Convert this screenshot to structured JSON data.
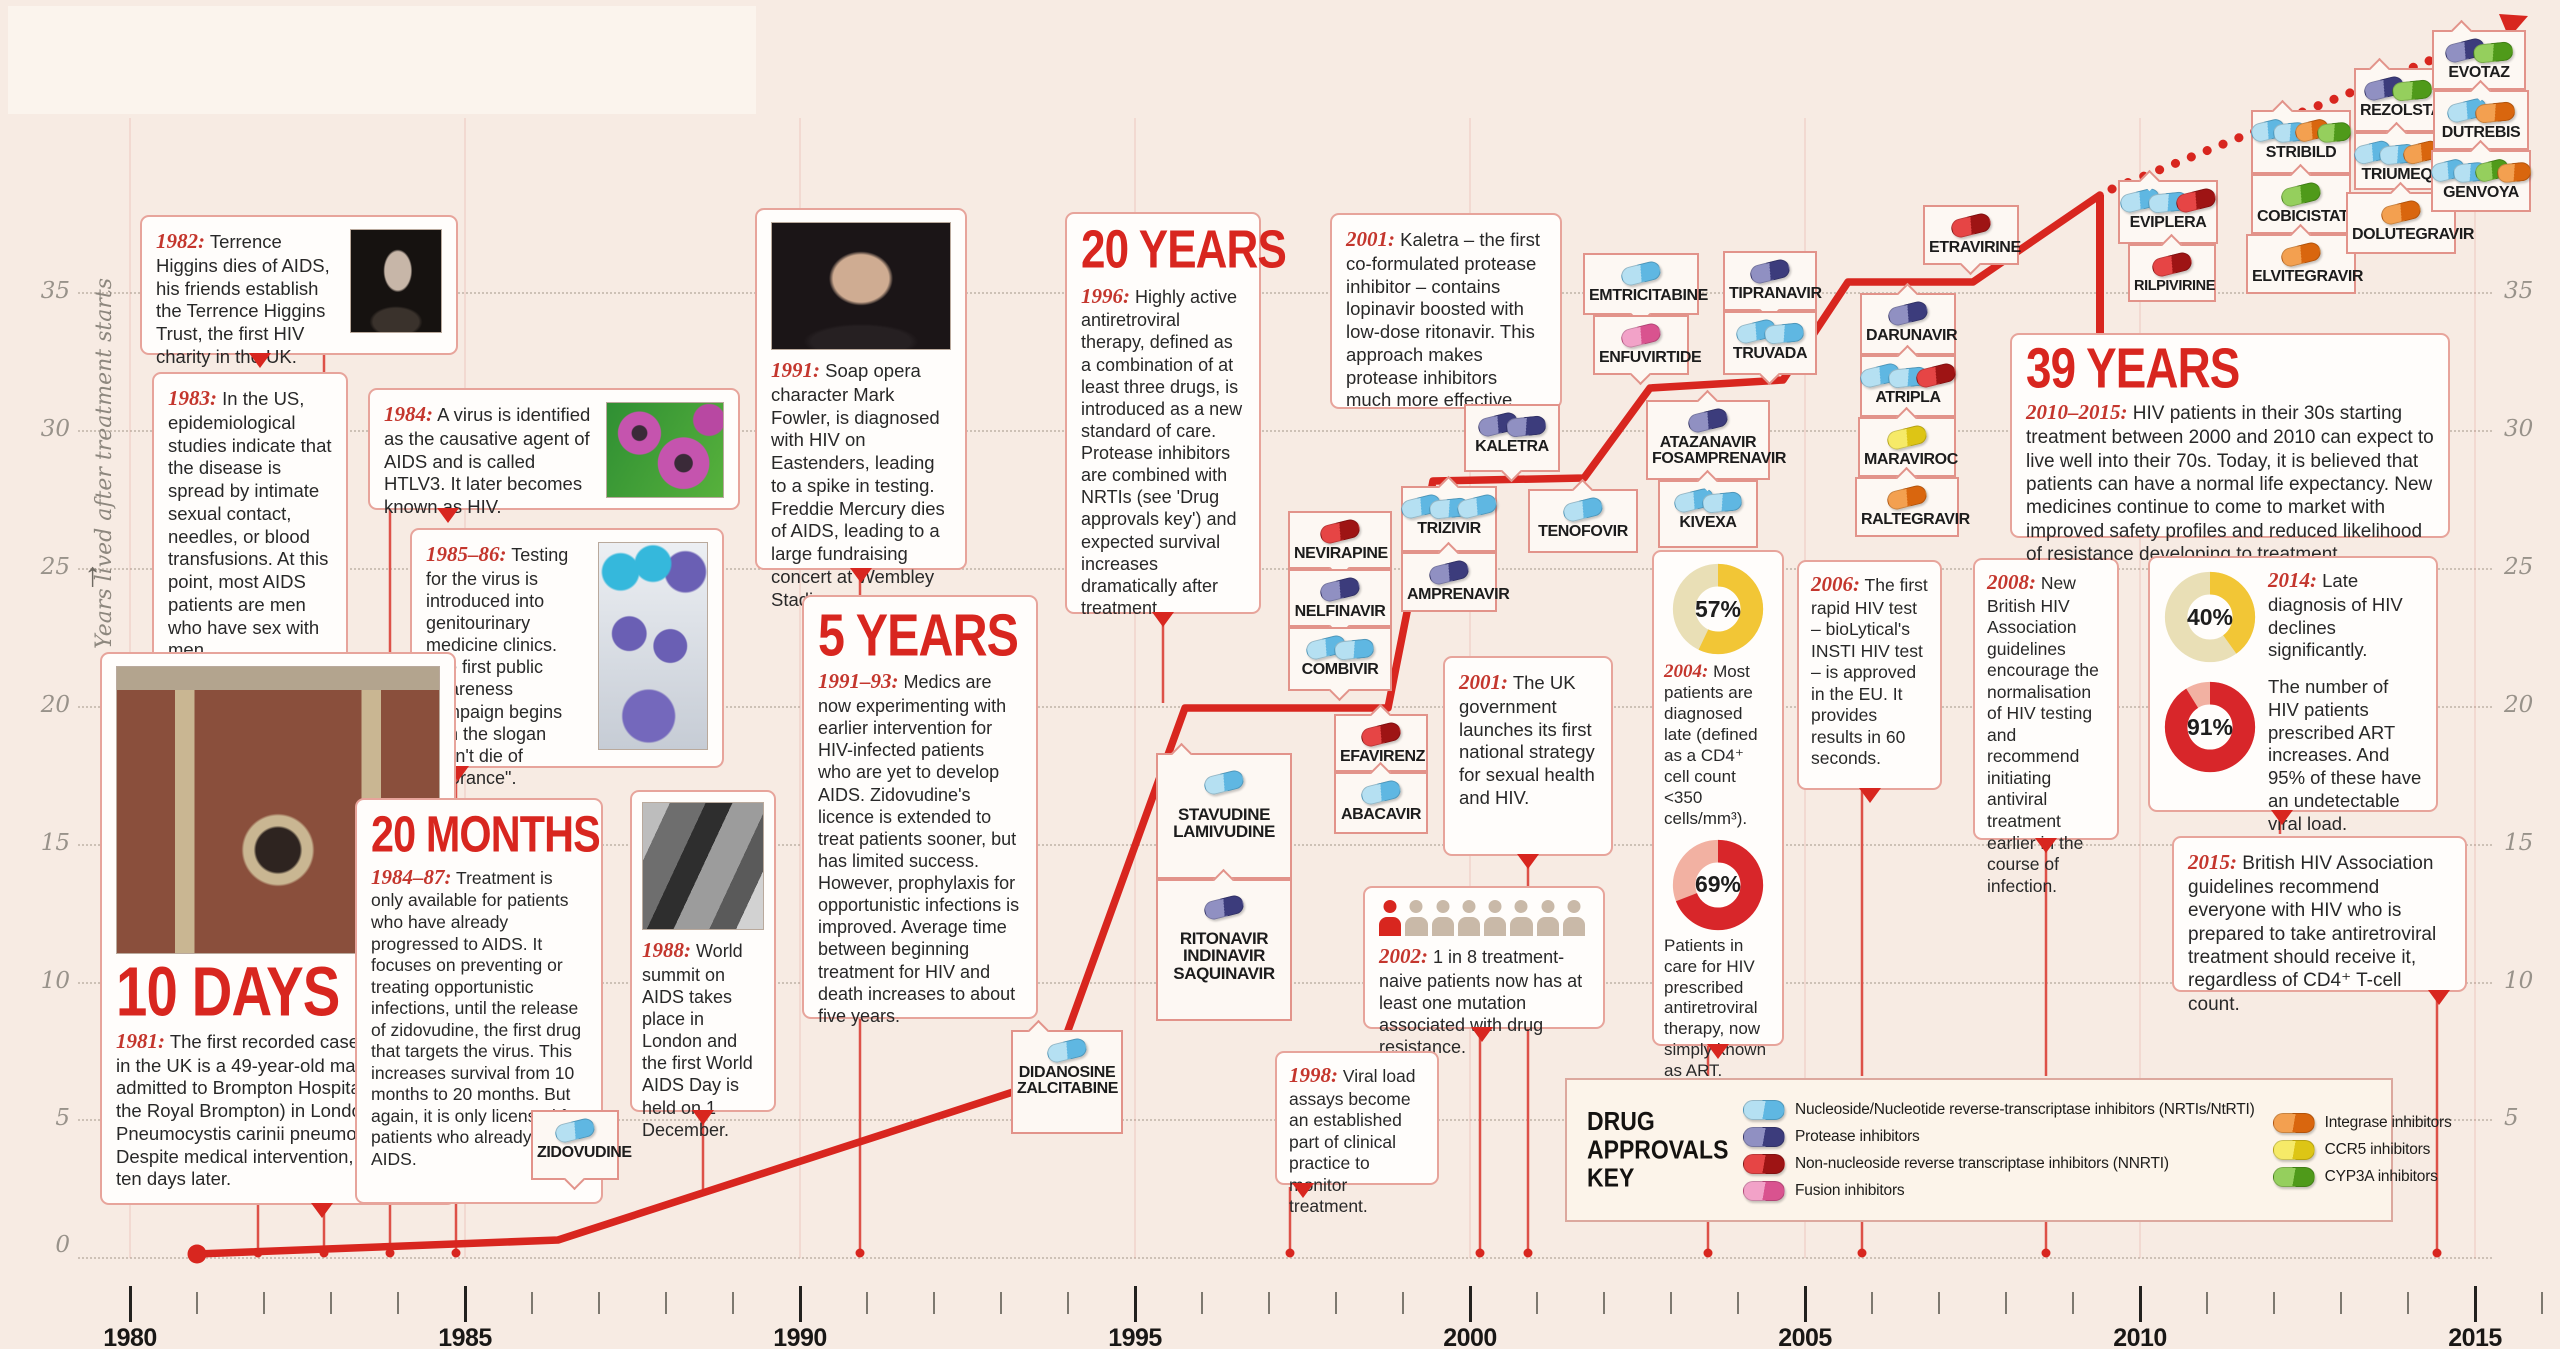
{
  "axis": {
    "y_label": "Years lived after treatment starts",
    "y_ticks": [
      "35",
      "30",
      "25",
      "20",
      "15",
      "10",
      "5",
      "0"
    ],
    "y_ticks_right": [
      "35",
      "30",
      "25",
      "20",
      "15",
      "10",
      "5"
    ],
    "x_ticks": [
      "1980",
      "1985",
      "1990",
      "1995",
      "2000",
      "2005",
      "2010",
      "2015"
    ]
  },
  "colors": {
    "accent_red": "#d8261f",
    "box_border": "#e2938a",
    "background": "#f7ebe3",
    "nrti_blue": "#5fb7e2",
    "protease_purple": "#3c3c7c",
    "nnrti_red": "#9e1414",
    "fusion_pink": "#d9538f",
    "integrase_orange": "#d9660e",
    "ccr5_yellow": "#ddc515",
    "cyp3a_green": "#4f9a1a",
    "donut_yellow": "#f2c636",
    "donut_red": "#d8262a"
  },
  "chart_data": {
    "type": "line",
    "title": "Years lived after treatment starts",
    "x": [
      1981,
      1986,
      1993,
      1996,
      1999,
      2000,
      2002,
      2003,
      2005,
      2006,
      2008,
      2010
    ],
    "y": [
      0,
      1,
      6.5,
      20,
      20,
      28,
      28.5,
      31.5,
      32,
      35.5,
      35.5,
      39
    ],
    "projection_x": [
      2010,
      2015
    ],
    "projection_y": [
      39,
      45
    ],
    "xlim": [
      1980,
      2016
    ],
    "ylim": [
      0,
      35
    ],
    "grid": true
  },
  "events": {
    "b1982": {
      "year": "1982:",
      "text": "Terrence Higgins dies of AIDS, his friends establish the Terrence Higgins Trust, the first HIV charity in the UK."
    },
    "b1983": {
      "year": "1983:",
      "text": "In the US, epidemiological studies indicate that the disease is spread by intimate sexual contact, needles, or blood transfusions. At this point, most AIDS patients are men who have sex with men."
    },
    "b1984": {
      "year": "1984:",
      "text": "A virus is identified as the causative agent of AIDS and is called HTLV3. It later becomes known as HIV."
    },
    "b1985": {
      "year": "1985–86:",
      "text": "Testing for the virus is introduced into genitourinary medicine clinics. The first public awareness campaign begins with the slogan \"Don't die of ignorance\"."
    },
    "b10days": {
      "headline": "10 DAYS",
      "year": "1981:",
      "text": "The first recorded case of AIDS in the UK is a 49-year-old man admitted to Brompton Hospital (now the Royal Brompton) in London, with Pneumocystis carinii pneumonia. Despite medical intervention, he dies ten days later."
    },
    "b20months": {
      "headline": "20 MONTHS",
      "year": "1984–87:",
      "text": "Treatment is only available for patients who have already progressed to AIDS. It focuses on preventing or treating opportunistic infections, until the release of zidovudine, the first drug that targets the virus. This increases survival from 10 months to 20 months. But again, it is only licensed for patients who already have AIDS."
    },
    "b1988": {
      "year": "1988:",
      "text": "World summit on AIDS takes place in London and the first World AIDS Day is held on 1 December."
    },
    "b1991": {
      "year": "1991:",
      "text": "Soap opera character Mark Fowler, is diagnosed with HIV on Eastenders, leading to a spike in testing. Freddie Mercury dies of AIDS, leading to a large fundraising concert at Wembley Stadium."
    },
    "b5years": {
      "headline": "5 YEARS",
      "year": "1991–93:",
      "text": "Medics are now experimenting with earlier intervention for HIV-infected patients who are yet to develop AIDS. Zidovudine's licence is extended to treat patients sooner, but has limited success. However, prophylaxis for opportunistic infections is improved. Average time between beginning treatment for HIV and death increases to about five years."
    },
    "b20years": {
      "headline": "20 YEARS",
      "year": "1996:",
      "text": "Highly active antiretroviral therapy, defined as a combination of at least three drugs, is introduced as a new standard of care. Protease inhibitors are combined with NRTIs (see 'Drug approvals key') and expected survival increases dramatically after treatment."
    },
    "bkaletra": {
      "year": "2001:",
      "text": "Kaletra – the first co-formulated protease inhibitor – contains lopinavir boosted with low-dose ritonavir. This approach makes protease inhibitors much more effective."
    },
    "buk2001": {
      "year": "2001:",
      "text": "The UK government launches its first national strategy for sexual health and HIV."
    },
    "b2002": {
      "year": "2002:",
      "text": "1 in 8 treatment-naive patients now has at least one mutation associated with drug resistance.",
      "people_total": 8,
      "people_red": 1
    },
    "b1998": {
      "year": "1998:",
      "text": "Viral load assays become an established part of clinical practice to monitor treatment."
    },
    "b2004": {
      "year": "2004:",
      "pct_top": "57%",
      "text1": "Most patients are diagnosed late (defined as a CD4⁺ cell count <350 cells/mm³).",
      "pct_bottom": "69%",
      "text2": "Patients in care for HIV prescribed antiretroviral therapy, now simply known as ART."
    },
    "b2006": {
      "year": "2006:",
      "text": "The first rapid HIV test – bioLytical's INSTI HIV test – is approved in the EU. It provides results in 60 seconds."
    },
    "b2008": {
      "year": "2008:",
      "text": "New British HIV Association guidelines encourage the normalisation of HIV testing and recommend initiating antiviral treatment earlier in the course of infection."
    },
    "b39years": {
      "headline": "39 YEARS",
      "year": "2010–2015:",
      "text": "HIV patients in their 30s starting treatment between 2000 and 2010 can expect to live well into their 70s. Today, it is believed that patients can have a normal life expectancy. New medicines continue to come to market with improved safety profiles and reduced likelihood of resistance developing to treatment."
    },
    "b2014": {
      "year": "2014:",
      "pct_top": "40%",
      "text1": "Late diagnosis of HIV declines significantly.",
      "pct_bottom": "91%",
      "text2": "The number of HIV patients prescribed ART increases. And 95% of these have an undetectable viral load."
    },
    "b2015": {
      "year": "2015:",
      "text": "British HIV Association guidelines recommend everyone with HIV who is prepared to take antiretroviral treatment should receive it, regardless of CD4⁺ T-cell count."
    }
  },
  "drugs": {
    "zidovudine": {
      "name": "ZIDOVUDINE",
      "pills": [
        "nrti"
      ]
    },
    "didanosine": {
      "name": "DIDANOSINE ZALCITABINE",
      "pills": [
        "nrti"
      ]
    },
    "stavudine": {
      "name": "STAVUDINE LAMIVUDINE",
      "pills": [
        "nrti"
      ]
    },
    "ritonavir": {
      "name": "RITONAVIR INDINAVIR SAQUINAVIR",
      "pills": [
        "pi"
      ]
    },
    "nevirapine": {
      "name": "NEVIRAPINE",
      "pills": [
        "nnrti"
      ]
    },
    "nelfinavir": {
      "name": "NELFINAVIR",
      "pills": [
        "pi"
      ]
    },
    "combivir": {
      "name": "COMBIVIR",
      "pills": [
        "nrti",
        "nrti"
      ]
    },
    "efavirenz": {
      "name": "EFAVIRENZ",
      "pills": [
        "nnrti"
      ]
    },
    "abacavir": {
      "name": "ABACAVIR",
      "pills": [
        "nrti"
      ]
    },
    "trizivir": {
      "name": "TRIZIVIR",
      "pills": [
        "nrti",
        "nrti",
        "nrti"
      ]
    },
    "amprenavir": {
      "name": "AMPRENAVIR",
      "pills": [
        "pi"
      ]
    },
    "kaletra": {
      "name": "KALETRA",
      "pills": [
        "pi",
        "pi"
      ]
    },
    "tenofovir": {
      "name": "TENOFOVIR",
      "pills": [
        "nrti"
      ]
    },
    "emtricitabine": {
      "name": "EMTRICITABINE",
      "pills": [
        "nrti"
      ]
    },
    "enfuvirtide": {
      "name": "ENFUVIRTIDE",
      "pills": [
        "fusion"
      ]
    },
    "tipranavir": {
      "name": "TIPRANAVIR",
      "pills": [
        "pi"
      ]
    },
    "truvada": {
      "name": "TRUVADA",
      "pills": [
        "nrti",
        "nrti"
      ]
    },
    "atazanavir": {
      "name": "ATAZANAVIR FOSAMPRENAVIR",
      "pills": [
        "pi"
      ]
    },
    "kivexa": {
      "name": "KIVEXA",
      "pills": [
        "nrti",
        "nrti"
      ]
    },
    "darunavir": {
      "name": "DARUNAVIR",
      "pills": [
        "pi"
      ]
    },
    "atripla": {
      "name": "ATRIPLA",
      "pills": [
        "nrti",
        "nrti",
        "nnrti"
      ]
    },
    "maraviroc": {
      "name": "MARAVIROC",
      "pills": [
        "ccr5"
      ]
    },
    "raltegravir": {
      "name": "RALTEGRAVIR",
      "pills": [
        "integrase"
      ]
    },
    "etravirine": {
      "name": "ETRAVIRINE",
      "pills": [
        "nnrti"
      ]
    },
    "eviplera": {
      "name": "EVIPLERA",
      "pills": [
        "nrti",
        "nrti",
        "nnrti"
      ]
    },
    "rilpivirine": {
      "name": "RILPIVIRINE",
      "pills": [
        "nnrti"
      ]
    },
    "stribild": {
      "name": "STRIBILD",
      "pills": [
        "nrti",
        "nrti",
        "integrase",
        "cyp3a"
      ]
    },
    "cobicistat": {
      "name": "COBICISTAT",
      "pills": [
        "cyp3a"
      ]
    },
    "elvitegravir": {
      "name": "ELVITEGRAVIR",
      "pills": [
        "integrase"
      ]
    },
    "rezolsta": {
      "name": "REZOLSTA",
      "pills": [
        "pi",
        "cyp3a"
      ]
    },
    "triumeq": {
      "name": "TRIUMEQ",
      "pills": [
        "nrti",
        "nrti",
        "integrase"
      ]
    },
    "dolutegravir": {
      "name": "DOLUTEGRAVIR",
      "pills": [
        "integrase"
      ]
    },
    "evotaz": {
      "name": "EVOTAZ",
      "pills": [
        "pi",
        "cyp3a"
      ]
    },
    "dutrebis": {
      "name": "DUTREBIS",
      "pills": [
        "nrti",
        "integrase"
      ]
    },
    "genvoya": {
      "name": "GENVOYA",
      "pills": [
        "nrti",
        "nrti",
        "cyp3a",
        "integrase"
      ]
    }
  },
  "key": {
    "title": "DRUG APPROVALS KEY",
    "col1": [
      {
        "type": "nrti",
        "label": "Nucleoside/Nucleotide reverse-transcriptase inhibitors (NRTIs/NtRTI)"
      },
      {
        "type": "pi",
        "label": "Protease inhibitors"
      },
      {
        "type": "nnrti",
        "label": "Non-nucleoside reverse transcriptase inhibitors (NNRTI)"
      },
      {
        "type": "fusion",
        "label": "Fusion inhibitors"
      }
    ],
    "col2": [
      {
        "type": "integrase",
        "label": "Integrase inhibitors"
      },
      {
        "type": "ccr5",
        "label": "CCR5 inhibitors"
      },
      {
        "type": "cyp3a",
        "label": "CYP3A inhibitors"
      }
    ]
  }
}
